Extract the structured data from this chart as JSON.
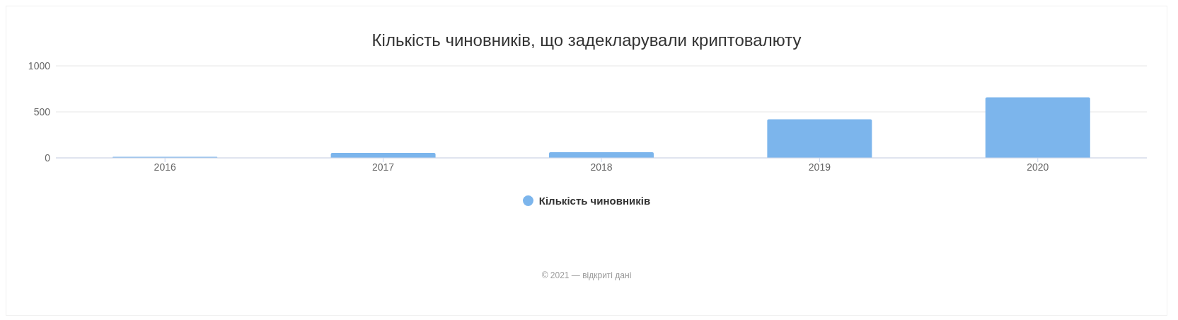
{
  "chart_data": {
    "type": "bar",
    "title": "Кількість чиновників, що задекларували криптовалюту",
    "categories": [
      "2016",
      "2017",
      "2018",
      "2019",
      "2020"
    ],
    "series": [
      {
        "name": "Кількість чиновників",
        "color": "#7cb5ec",
        "values": [
          12,
          53,
          62,
          420,
          657
        ]
      }
    ],
    "ylim": [
      0,
      1000
    ],
    "yticks": [
      0,
      500,
      1000
    ],
    "grid": "y",
    "legend": "bottom",
    "annotations": [
      "© 2021 — відкриті дані"
    ]
  }
}
